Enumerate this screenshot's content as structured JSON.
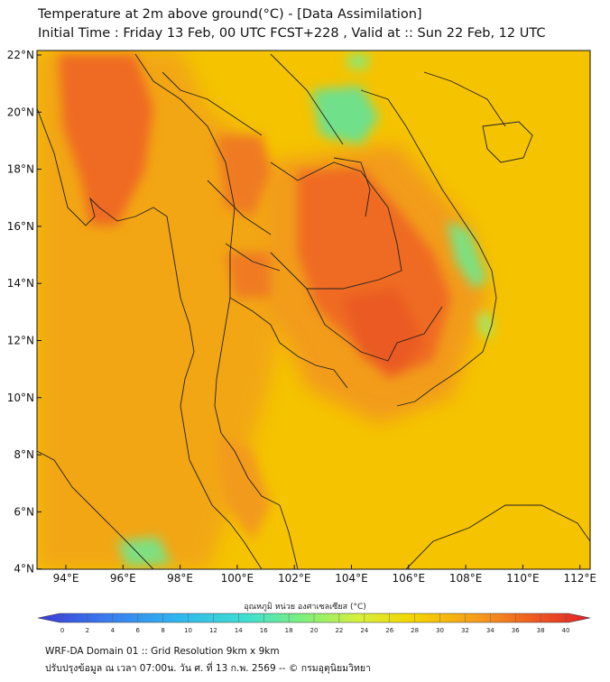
{
  "header": {
    "title_line1": "Temperature at 2m above ground(°C) - [Data Assimilation]",
    "title_line2": "Initial Time : Friday 13 Feb, 00 UTC FCST+228 , Valid at :: Sun 22 Feb, 12 UTC"
  },
  "map": {
    "lat_labels": [
      "22°N",
      "20°N",
      "18°N",
      "16°N",
      "14°N",
      "12°N",
      "10°N",
      "8°N",
      "6°N",
      "4°N"
    ],
    "lon_labels": [
      "94°E",
      "96°E",
      "98°E",
      "100°E",
      "102°E",
      "104°E",
      "106°E",
      "108°E",
      "110°E",
      "112°E"
    ],
    "colors": {
      "background": "#f5c300",
      "warm": "#f29a1a",
      "hot": "#ef6a22",
      "cool": "#6fe08a"
    }
  },
  "colorbar": {
    "label": "อุณหภูมิ หน่วย องศาเซลเซียส (°C)",
    "ticks": [
      "0",
      "2",
      "4",
      "6",
      "8",
      "10",
      "12",
      "14",
      "16",
      "18",
      "20",
      "22",
      "24",
      "26",
      "28",
      "30",
      "32",
      "34",
      "36",
      "38",
      "40"
    ],
    "colors": [
      "#3b3bd6",
      "#3a79ee",
      "#2fb5f0",
      "#3fe0d0",
      "#7ef07a",
      "#d6f03c",
      "#f5d400",
      "#f59a1c",
      "#ef5a20",
      "#e0202a"
    ]
  },
  "footer": {
    "line1": "WRF-DA Domain 01 :: Grid Resolution 9km x 9km",
    "line2": "ปรับปรุงข้อมูล ณ เวลา 07:00น. วัน ศ. ที่ 13 ก.พ. 2569 -- © กรมอุตุนิยมวิทยา"
  }
}
